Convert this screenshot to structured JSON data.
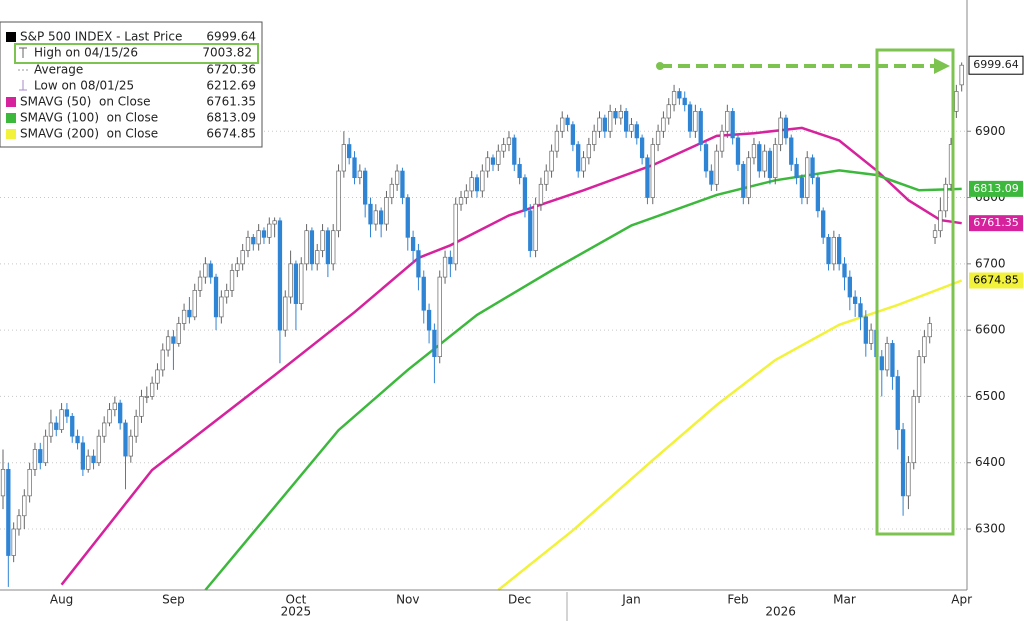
{
  "chart_data": {
    "type": "candlestick",
    "price": {
      "name": "S&P 500 INDEX - Last Price",
      "color": "#000000",
      "up_color": "#ffffff",
      "down_color": "#2f84d4",
      "candles": [
        [
          6350,
          6420,
          6330,
          6390
        ],
        [
          6390,
          6400,
          6212.69,
          6260
        ],
        [
          6260,
          6310,
          6250,
          6300
        ],
        [
          6300,
          6330,
          6290,
          6320
        ],
        [
          6320,
          6360,
          6300,
          6350
        ],
        [
          6350,
          6400,
          6340,
          6390
        ],
        [
          6390,
          6430,
          6380,
          6420
        ],
        [
          6420,
          6430,
          6390,
          6400
        ],
        [
          6400,
          6450,
          6395,
          6440
        ],
        [
          6440,
          6480,
          6430,
          6460
        ],
        [
          6460,
          6470,
          6440,
          6450
        ],
        [
          6450,
          6490,
          6445,
          6480
        ],
        [
          6480,
          6490,
          6460,
          6470
        ],
        [
          6470,
          6475,
          6430,
          6440
        ],
        [
          6440,
          6450,
          6420,
          6430
        ],
        [
          6430,
          6440,
          6380,
          6390
        ],
        [
          6390,
          6420,
          6385,
          6410
        ],
        [
          6410,
          6420,
          6390,
          6400
        ],
        [
          6400,
          6450,
          6395,
          6440
        ],
        [
          6440,
          6470,
          6430,
          6460
        ],
        [
          6460,
          6490,
          6455,
          6480
        ],
        [
          6480,
          6500,
          6470,
          6490
        ],
        [
          6490,
          6495,
          6450,
          6460
        ],
        [
          6460,
          6465,
          6360,
          6410
        ],
        [
          6410,
          6450,
          6400,
          6440
        ],
        [
          6440,
          6480,
          6430,
          6470
        ],
        [
          6470,
          6510,
          6460,
          6500
        ],
        [
          6500,
          6515,
          6490,
          6500
        ],
        [
          6500,
          6530,
          6495,
          6520
        ],
        [
          6520,
          6550,
          6510,
          6540
        ],
        [
          6540,
          6580,
          6530,
          6570
        ],
        [
          6570,
          6600,
          6560,
          6590
        ],
        [
          6590,
          6600,
          6540,
          6580
        ],
        [
          6580,
          6620,
          6575,
          6610
        ],
        [
          6610,
          6640,
          6600,
          6630
        ],
        [
          6630,
          6650,
          6610,
          6620
        ],
        [
          6620,
          6670,
          6615,
          6660
        ],
        [
          6660,
          6690,
          6650,
          6680
        ],
        [
          6680,
          6710,
          6670,
          6700
        ],
        [
          6700,
          6705,
          6670,
          6680
        ],
        [
          6680,
          6685,
          6600,
          6620
        ],
        [
          6620,
          6660,
          6610,
          6650
        ],
        [
          6650,
          6670,
          6640,
          6660
        ],
        [
          6660,
          6700,
          6650,
          6690
        ],
        [
          6690,
          6710,
          6680,
          6700
        ],
        [
          6700,
          6730,
          6690,
          6720
        ],
        [
          6720,
          6750,
          6710,
          6740
        ],
        [
          6740,
          6745,
          6720,
          6730
        ],
        [
          6730,
          6760,
          6720,
          6750
        ],
        [
          6750,
          6755,
          6730,
          6740
        ],
        [
          6740,
          6770,
          6730,
          6760
        ],
        [
          6760,
          6770,
          6740,
          6765
        ],
        [
          6765,
          6770,
          6550,
          6600
        ],
        [
          6600,
          6660,
          6590,
          6650
        ],
        [
          6650,
          6720,
          6640,
          6700
        ],
        [
          6700,
          6705,
          6600,
          6640
        ],
        [
          6640,
          6710,
          6630,
          6700
        ],
        [
          6700,
          6760,
          6690,
          6750
        ],
        [
          6750,
          6755,
          6690,
          6700
        ],
        [
          6700,
          6730,
          6690,
          6720
        ],
        [
          6720,
          6760,
          6710,
          6750
        ],
        [
          6750,
          6755,
          6680,
          6700
        ],
        [
          6700,
          6760,
          6690,
          6750
        ],
        [
          6750,
          6850,
          6740,
          6840
        ],
        [
          6840,
          6900,
          6830,
          6880
        ],
        [
          6880,
          6890,
          6850,
          6860
        ],
        [
          6860,
          6870,
          6820,
          6830
        ],
        [
          6830,
          6850,
          6820,
          6840
        ],
        [
          6840,
          6845,
          6770,
          6790
        ],
        [
          6790,
          6800,
          6740,
          6760
        ],
        [
          6760,
          6790,
          6750,
          6780
        ],
        [
          6780,
          6785,
          6740,
          6760
        ],
        [
          6760,
          6810,
          6750,
          6800
        ],
        [
          6800,
          6830,
          6790,
          6820
        ],
        [
          6820,
          6850,
          6810,
          6840
        ],
        [
          6840,
          6845,
          6790,
          6800
        ],
        [
          6800,
          6805,
          6720,
          6740
        ],
        [
          6740,
          6750,
          6700,
          6720
        ],
        [
          6720,
          6730,
          6660,
          6680
        ],
        [
          6680,
          6690,
          6610,
          6630
        ],
        [
          6630,
          6640,
          6580,
          6600
        ],
        [
          6600,
          6610,
          6520,
          6560
        ],
        [
          6560,
          6690,
          6550,
          6680
        ],
        [
          6680,
          6720,
          6670,
          6710
        ],
        [
          6710,
          6720,
          6680,
          6700
        ],
        [
          6700,
          6800,
          6690,
          6790
        ],
        [
          6790,
          6810,
          6780,
          6800
        ],
        [
          6800,
          6820,
          6790,
          6810
        ],
        [
          6810,
          6840,
          6800,
          6830
        ],
        [
          6830,
          6835,
          6800,
          6810
        ],
        [
          6810,
          6850,
          6800,
          6840
        ],
        [
          6840,
          6870,
          6830,
          6860
        ],
        [
          6860,
          6865,
          6840,
          6850
        ],
        [
          6850,
          6880,
          6840,
          6870
        ],
        [
          6870,
          6890,
          6860,
          6880
        ],
        [
          6880,
          6900,
          6870,
          6890
        ],
        [
          6890,
          6895,
          6840,
          6850
        ],
        [
          6850,
          6860,
          6820,
          6830
        ],
        [
          6830,
          6835,
          6770,
          6780
        ],
        [
          6780,
          6790,
          6710,
          6720
        ],
        [
          6720,
          6800,
          6710,
          6790
        ],
        [
          6790,
          6830,
          6780,
          6820
        ],
        [
          6820,
          6850,
          6810,
          6840
        ],
        [
          6840,
          6880,
          6830,
          6870
        ],
        [
          6870,
          6910,
          6860,
          6900
        ],
        [
          6900,
          6930,
          6890,
          6920
        ],
        [
          6920,
          6925,
          6900,
          6910
        ],
        [
          6910,
          6915,
          6870,
          6880
        ],
        [
          6880,
          6885,
          6830,
          6840
        ],
        [
          6840,
          6870,
          6830,
          6860
        ],
        [
          6860,
          6890,
          6850,
          6880
        ],
        [
          6880,
          6910,
          6870,
          6900
        ],
        [
          6900,
          6930,
          6890,
          6920
        ],
        [
          6920,
          6925,
          6890,
          6900
        ],
        [
          6900,
          6940,
          6890,
          6930
        ],
        [
          6930,
          6935,
          6910,
          6920
        ],
        [
          6920,
          6940,
          6910,
          6930
        ],
        [
          6930,
          6935,
          6890,
          6900
        ],
        [
          6900,
          6920,
          6890,
          6910
        ],
        [
          6910,
          6915,
          6880,
          6890
        ],
        [
          6890,
          6895,
          6850,
          6860
        ],
        [
          6860,
          6865,
          6790,
          6800
        ],
        [
          6800,
          6890,
          6790,
          6880
        ],
        [
          6880,
          6910,
          6870,
          6900
        ],
        [
          6900,
          6930,
          6890,
          6920
        ],
        [
          6920,
          6950,
          6910,
          6940
        ],
        [
          6940,
          6970,
          6930,
          6960
        ],
        [
          6960,
          6965,
          6940,
          6950
        ],
        [
          6950,
          6960,
          6930,
          6940
        ],
        [
          6940,
          6945,
          6890,
          6900
        ],
        [
          6900,
          6940,
          6890,
          6930
        ],
        [
          6930,
          6935,
          6870,
          6880
        ],
        [
          6880,
          6885,
          6830,
          6840
        ],
        [
          6840,
          6850,
          6810,
          6820
        ],
        [
          6820,
          6880,
          6810,
          6870
        ],
        [
          6870,
          6910,
          6860,
          6900
        ],
        [
          6900,
          6940,
          6890,
          6930
        ],
        [
          6930,
          6935,
          6880,
          6890
        ],
        [
          6890,
          6895,
          6840,
          6850
        ],
        [
          6850,
          6855,
          6790,
          6800
        ],
        [
          6800,
          6870,
          6790,
          6860
        ],
        [
          6860,
          6890,
          6850,
          6880
        ],
        [
          6880,
          6885,
          6830,
          6840
        ],
        [
          6840,
          6880,
          6830,
          6870
        ],
        [
          6870,
          6875,
          6820,
          6830
        ],
        [
          6830,
          6890,
          6820,
          6880
        ],
        [
          6880,
          6930,
          6870,
          6920
        ],
        [
          6920,
          6925,
          6880,
          6890
        ],
        [
          6890,
          6895,
          6840,
          6850
        ],
        [
          6850,
          6860,
          6820,
          6830
        ],
        [
          6830,
          6835,
          6790,
          6800
        ],
        [
          6800,
          6870,
          6790,
          6860
        ],
        [
          6860,
          6865,
          6820,
          6830
        ],
        [
          6830,
          6835,
          6770,
          6780
        ],
        [
          6780,
          6785,
          6730,
          6740
        ],
        [
          6740,
          6745,
          6690,
          6700
        ],
        [
          6700,
          6750,
          6690,
          6740
        ],
        [
          6740,
          6745,
          6690,
          6700
        ],
        [
          6700,
          6710,
          6660,
          6680
        ],
        [
          6680,
          6690,
          6630,
          6650
        ],
        [
          6650,
          6660,
          6620,
          6640
        ],
        [
          6640,
          6650,
          6600,
          6620
        ],
        [
          6620,
          6630,
          6560,
          6580
        ],
        [
          6580,
          6610,
          6570,
          6600
        ],
        [
          6600,
          6605,
          6540,
          6560
        ],
        [
          6560,
          6570,
          6500,
          6540
        ],
        [
          6540,
          6590,
          6530,
          6580
        ],
        [
          6580,
          6585,
          6510,
          6530
        ],
        [
          6530,
          6540,
          6420,
          6450
        ],
        [
          6450,
          6460,
          6320,
          6350
        ],
        [
          6350,
          6410,
          6330,
          6400
        ],
        [
          6400,
          6510,
          6390,
          6500
        ],
        [
          6500,
          6570,
          6490,
          6560
        ],
        [
          6560,
          6600,
          6550,
          6590
        ],
        [
          6590,
          6620,
          6580,
          6610
        ],
        [
          6740,
          6760,
          6730,
          6750
        ],
        [
          6750,
          6800,
          6740,
          6780
        ],
        [
          6780,
          6830,
          6770,
          6820
        ],
        [
          6820,
          6890,
          6810,
          6880
        ],
        [
          6930,
          6970,
          6920,
          6960
        ],
        [
          6970,
          7003.82,
          6960,
          6999.64
        ]
      ]
    },
    "high_label": "High on 04/15/26",
    "low_label": "Low on 08/01/25",
    "average": {
      "name": "Average",
      "value": 6720.36
    },
    "series": [
      {
        "name": "SMAVG (50)  on Close",
        "color": "#d6229c",
        "x": [
          11,
          28,
          51,
          66,
          78,
          84,
          95,
          109,
          122,
          134,
          141,
          150,
          157,
          164,
          170,
          176,
          180
        ],
        "values": [
          6216,
          6389,
          6532,
          6627,
          6709,
          6728,
          6773,
          6811,
          6849,
          6893,
          6897,
          6905,
          6886,
          6841,
          6796,
          6766,
          6761.35
        ]
      },
      {
        "name": "SMAVG (100)  on Close",
        "color": "#3cb83c",
        "x": [
          38,
          49,
          63,
          76,
          89,
          103,
          118,
          134,
          145,
          157,
          164,
          172,
          180
        ],
        "values": [
          6208,
          6314,
          6449,
          6540,
          6623,
          6690,
          6758,
          6804,
          6826,
          6841,
          6834,
          6811,
          6813.09
        ]
      },
      {
        "name": "SMAVG (200)  on Close",
        "color": "#f2f23a",
        "x": [
          93,
          107,
          122,
          134,
          145,
          157,
          168,
          180
        ],
        "values": [
          6208,
          6298,
          6404,
          6487,
          6555,
          6608,
          6638,
          6674.85
        ]
      }
    ],
    "ylim": [
      6208,
      7098
    ],
    "yticks": [
      6300,
      6400,
      6500,
      6600,
      6700,
      6800,
      6900
    ],
    "xlim": [
      0,
      181
    ],
    "xticks": [
      {
        "value": 11,
        "label": "Aug"
      },
      {
        "value": 32,
        "label": "Sep"
      },
      {
        "value": 55,
        "label": "Oct"
      },
      {
        "value": 76,
        "label": "Nov"
      },
      {
        "value": 97,
        "label": "Dec"
      },
      {
        "value": 118,
        "label": "Jan"
      },
      {
        "value": 138,
        "label": "Feb"
      },
      {
        "value": 158,
        "label": "Mar"
      },
      {
        "value": 180,
        "label": "Apr"
      }
    ],
    "year_ticks": [
      {
        "value": 55,
        "label": "2025"
      },
      {
        "value": 146,
        "label": "2026"
      }
    ],
    "grid": true
  }
}
